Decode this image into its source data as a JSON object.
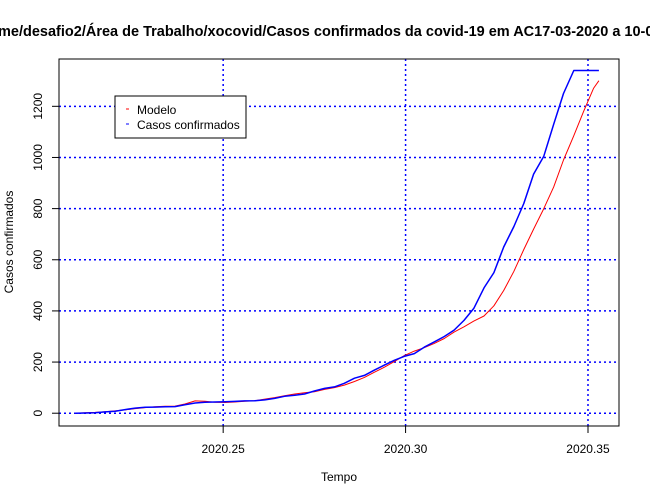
{
  "chart_data": {
    "type": "line",
    "title": "me/desafio2/Área de Trabalho/xocovid/Casos confirmados da covid-19 em AC17-03-2020 a 10-0",
    "xlabel": "Tempo",
    "ylabel": "Casos confirmados",
    "xlim": [
      2020.205,
      2020.3585
    ],
    "ylim": [
      -50,
      1385
    ],
    "x_ticks": [
      2020.25,
      2020.3,
      2020.35
    ],
    "x_tick_labels": [
      "2020.25",
      "2020.30",
      "2020.35"
    ],
    "y_ticks": [
      0,
      200,
      400,
      600,
      800,
      1000,
      1200
    ],
    "y_tick_labels": [
      "0",
      "200",
      "400",
      "600",
      "800",
      "1000",
      "1200"
    ],
    "grid": true,
    "grid_color": "#0000ff",
    "grid_style": "dotted",
    "legend_position": "top-left",
    "series": [
      {
        "name": "Modelo",
        "color": "#ff0000",
        "x": [
          2020.2095,
          2020.2122,
          2020.2149,
          2020.2177,
          2020.2204,
          2020.2231,
          2020.2259,
          2020.2286,
          2020.2313,
          2020.2341,
          2020.2368,
          2020.2395,
          2020.2423,
          2020.245,
          2020.2477,
          2020.2505,
          2020.2532,
          2020.2559,
          2020.2587,
          2020.2614,
          2020.2641,
          2020.2668,
          2020.2696,
          2020.2723,
          2020.275,
          2020.2778,
          2020.2805,
          2020.2832,
          2020.286,
          2020.2887,
          2020.2914,
          2020.2942,
          2020.2969,
          2020.2996,
          2020.3024,
          2020.3051,
          2020.3078,
          2020.3106,
          2020.3133,
          2020.316,
          2020.3187,
          2020.3215,
          2020.3242,
          2020.3269,
          2020.3297,
          2020.3324,
          2020.3351,
          2020.3379,
          2020.3406,
          2020.3433,
          2020.3461,
          2020.3488,
          2020.3515,
          2020.353
        ],
        "y": [
          0,
          2,
          3,
          6,
          9,
          13,
          18,
          22,
          25,
          27,
          28,
          36,
          48,
          47,
          43,
          42,
          44,
          47,
          49,
          55,
          61,
          68,
          75,
          80,
          84,
          93,
          100,
          110,
          124,
          140,
          160,
          180,
          202,
          225,
          243,
          256,
          272,
          292,
          317,
          338,
          360,
          380,
          420,
          480,
          555,
          640,
          720,
          800,
          885,
          990,
          1085,
          1180,
          1270,
          1300
        ]
      },
      {
        "name": "Casos confirmados",
        "color": "#0000ff",
        "x": [
          2020.2095,
          2020.2122,
          2020.2149,
          2020.2177,
          2020.2204,
          2020.2231,
          2020.2259,
          2020.2286,
          2020.2313,
          2020.2341,
          2020.2368,
          2020.2395,
          2020.2423,
          2020.245,
          2020.2477,
          2020.2505,
          2020.2532,
          2020.2559,
          2020.2587,
          2020.2614,
          2020.2641,
          2020.2668,
          2020.2696,
          2020.2723,
          2020.275,
          2020.2778,
          2020.2805,
          2020.2832,
          2020.286,
          2020.2887,
          2020.2914,
          2020.2942,
          2020.2969,
          2020.2996,
          2020.3024,
          2020.3051,
          2020.3078,
          2020.3106,
          2020.3133,
          2020.316,
          2020.3187,
          2020.3215,
          2020.3242,
          2020.3269,
          2020.3297,
          2020.3324,
          2020.3351,
          2020.3379,
          2020.3406,
          2020.3433,
          2020.3461,
          2020.3488,
          2020.3515,
          2020.353
        ],
        "y": [
          0,
          1,
          2,
          5,
          8,
          14,
          20,
          23,
          24,
          25,
          26,
          33,
          40,
          43,
          44,
          45,
          46,
          48,
          49,
          52,
          58,
          66,
          70,
          75,
          87,
          97,
          103,
          117,
          137,
          148,
          168,
          188,
          207,
          222,
          233,
          258,
          278,
          300,
          325,
          363,
          410,
          490,
          550,
          650,
          730,
          820,
          935,
          1005,
          1130,
          1250,
          1340,
          1340,
          1340,
          1340
        ]
      }
    ]
  }
}
